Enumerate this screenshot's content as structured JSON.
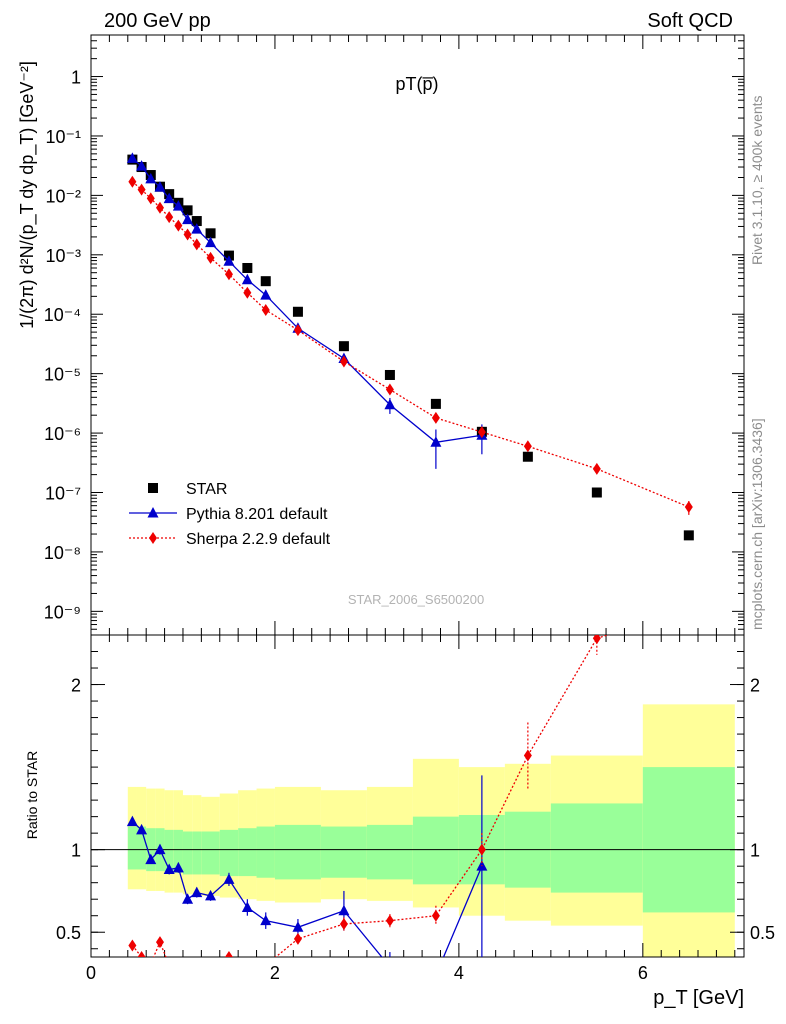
{
  "header": {
    "left": "200 GeV pp",
    "right": "Soft QCD",
    "observable": "pT(p̅)"
  },
  "side_text": {
    "rivet": "Rivet 3.1.10, ≥ 400k events",
    "source": "mcplots.cern.ch [arXiv:1306.3436]"
  },
  "watermark": "STAR_2006_S6500200",
  "colors": {
    "star": "#000000",
    "pythia": "#0000cc",
    "sherpa": "#ee0000",
    "band_inner": "#99ff99",
    "band_outer": "#ffff99"
  },
  "chart_data": [
    {
      "type": "scatter",
      "role": "main",
      "ylabel": "1/(2π) d²N/(p_T dy dp_T) [GeV⁻²]",
      "ylog": true,
      "ylim": [
        4e-10,
        5
      ],
      "xlim": [
        0,
        7.1
      ],
      "ytick_labels": [
        "10⁻⁹",
        "10⁻⁸",
        "10⁻⁷",
        "10⁻⁶",
        "10⁻⁵",
        "10⁻⁴",
        "10⁻³",
        "10⁻²",
        "10⁻¹",
        "1"
      ],
      "legend": {
        "position": "bottom-left",
        "entries": [
          "STAR",
          "Pythia 8.201 default",
          "Sherpa 2.2.9 default"
        ]
      },
      "series": [
        {
          "name": "STAR",
          "marker": "square",
          "x": [
            0.45,
            0.55,
            0.65,
            0.75,
            0.85,
            0.95,
            1.05,
            1.15,
            1.3,
            1.5,
            1.7,
            1.9,
            2.25,
            2.75,
            3.25,
            3.75,
            4.25,
            4.75,
            5.5,
            6.5
          ],
          "y": [
            0.04,
            0.03,
            0.022,
            0.014,
            0.0105,
            0.0075,
            0.0056,
            0.0037,
            0.0023,
            0.00097,
            0.0006,
            0.00036,
            0.00011,
            2.9e-05,
            9.5e-06,
            3.1e-06,
            1.05e-06,
            4e-07,
            1e-07,
            1.9e-08
          ]
        },
        {
          "name": "Pythia 8.201 default",
          "marker": "triangle",
          "x": [
            0.45,
            0.55,
            0.65,
            0.75,
            0.85,
            0.95,
            1.05,
            1.15,
            1.3,
            1.5,
            1.7,
            1.9,
            2.25,
            2.75,
            3.25,
            3.75,
            4.25
          ],
          "y": [
            0.042,
            0.031,
            0.019,
            0.0138,
            0.0088,
            0.0066,
            0.0039,
            0.0027,
            0.0016,
            0.00078,
            0.00038,
            0.00021,
            5.8e-05,
            1.8e-05,
            3e-06,
            7e-07,
            9.2e-07
          ],
          "y_err": [
            0,
            0,
            0,
            0,
            0,
            0,
            0,
            0,
            0,
            0,
            0,
            0,
            0,
            0,
            9e-07,
            4.5e-07,
            4.8e-07
          ]
        },
        {
          "name": "Sherpa 2.2.9 default",
          "marker": "diamond",
          "x": [
            0.45,
            0.55,
            0.65,
            0.75,
            0.85,
            0.95,
            1.05,
            1.15,
            1.3,
            1.5,
            1.7,
            1.9,
            2.25,
            2.75,
            3.25,
            3.75,
            4.25,
            4.75,
            5.5,
            6.5
          ],
          "y": [
            0.017,
            0.0125,
            0.0089,
            0.0062,
            0.0043,
            0.0031,
            0.0022,
            0.0015,
            0.00089,
            0.00047,
            0.00023,
            0.000118,
            5.4e-05,
            1.6e-05,
            5.4e-06,
            1.8e-06,
            1.04e-06,
            6e-07,
            2.5e-07,
            5.7e-08
          ],
          "y_err": [
            0,
            0,
            0,
            0,
            0,
            0,
            0,
            0,
            0,
            0,
            0,
            0,
            0,
            0,
            5e-07,
            2e-07,
            1.2e-07,
            8e-08,
            3e-08,
            1.5e-08
          ]
        }
      ]
    },
    {
      "type": "line",
      "role": "ratio",
      "ylabel": "Ratio to STAR",
      "xlabel": "p_T [GeV]",
      "xlim": [
        0,
        7.1
      ],
      "ylim": [
        0.35,
        2.3
      ],
      "x_ticks": [
        0,
        2,
        4,
        6
      ],
      "y_ticks": [
        0.5,
        1,
        2
      ],
      "reference_line": 1,
      "bands": {
        "edges": [
          0.4,
          0.5,
          0.6,
          0.7,
          0.8,
          0.9,
          1.0,
          1.1,
          1.2,
          1.4,
          1.6,
          1.8,
          2.0,
          2.5,
          3.0,
          3.5,
          4.0,
          4.5,
          5.0,
          6.0,
          7.0
        ],
        "inner_low": [
          0.88,
          0.88,
          0.87,
          0.87,
          0.86,
          0.86,
          0.85,
          0.85,
          0.85,
          0.84,
          0.84,
          0.83,
          0.82,
          0.83,
          0.82,
          0.79,
          0.79,
          0.77,
          0.74,
          0.62
        ],
        "inner_high": [
          1.14,
          1.14,
          1.13,
          1.13,
          1.12,
          1.12,
          1.11,
          1.11,
          1.11,
          1.12,
          1.13,
          1.14,
          1.15,
          1.14,
          1.15,
          1.2,
          1.21,
          1.23,
          1.28,
          1.5
        ],
        "outer_low": [
          0.76,
          0.76,
          0.75,
          0.75,
          0.74,
          0.74,
          0.73,
          0.73,
          0.72,
          0.71,
          0.7,
          0.69,
          0.68,
          0.7,
          0.69,
          0.65,
          0.6,
          0.57,
          0.54,
          0.35
        ],
        "outer_high": [
          1.38,
          1.38,
          1.37,
          1.37,
          1.36,
          1.36,
          1.33,
          1.33,
          1.32,
          1.34,
          1.36,
          1.37,
          1.38,
          1.36,
          1.38,
          1.55,
          1.5,
          1.52,
          1.57,
          1.88
        ]
      },
      "series": [
        {
          "name": "Pythia 8.201 default",
          "marker": "triangle",
          "x": [
            0.45,
            0.55,
            0.65,
            0.75,
            0.85,
            0.95,
            1.05,
            1.15,
            1.3,
            1.5,
            1.7,
            1.9,
            2.25,
            2.75,
            3.25,
            3.75,
            4.25
          ],
          "y": [
            1.17,
            1.12,
            0.94,
            1.0,
            0.88,
            0.89,
            0.7,
            0.74,
            0.72,
            0.82,
            0.65,
            0.57,
            0.53,
            0.63,
            0.29,
            0.24,
            0.9
          ],
          "y_err": [
            0,
            0,
            0,
            0.03,
            0.03,
            0.03,
            0.03,
            0.03,
            0.03,
            0.04,
            0.05,
            0.05,
            0.05,
            0.12,
            0.09,
            0.1,
            0.55
          ]
        },
        {
          "name": "Sherpa 2.2.9 default",
          "marker": "diamond",
          "x": [
            0.45,
            0.55,
            0.65,
            0.75,
            0.85,
            0.95,
            1.05,
            1.15,
            1.3,
            1.5,
            1.7,
            1.9,
            2.25,
            2.75,
            3.25,
            3.75,
            4.25,
            4.75,
            5.5,
            6.5
          ],
          "y": [
            0.42,
            0.35,
            0.31,
            0.44,
            0.3,
            0.3,
            0.3,
            0.3,
            0.3,
            0.35,
            0.28,
            0.3,
            0.46,
            0.55,
            0.57,
            0.6,
            1.0,
            1.57,
            2.28,
            2.45
          ],
          "y_err": [
            0,
            0,
            0,
            0.02,
            0,
            0,
            0,
            0,
            0,
            0,
            0,
            0,
            0.02,
            0.04,
            0.04,
            0.06,
            0.1,
            0.2,
            0.1,
            0
          ]
        }
      ]
    }
  ]
}
